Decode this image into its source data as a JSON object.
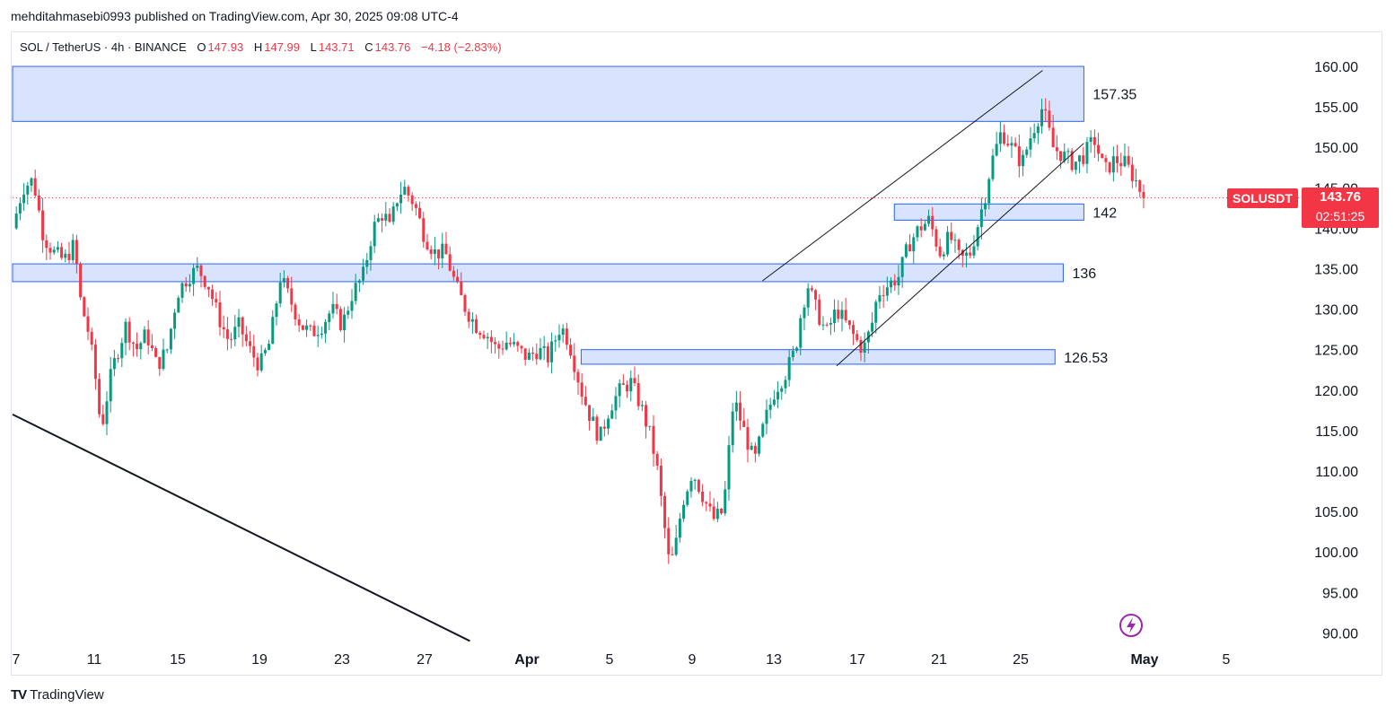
{
  "header": {
    "publisher": "mehditahmasebi0993 published on TradingView.com, Apr 30, 2025 09:08 UTC-4"
  },
  "legend": {
    "symbol": "SOL / TetherUS · 4h · BINANCE",
    "open_label": "O",
    "open": "147.93",
    "high_label": "H",
    "high": "147.99",
    "low_label": "L",
    "low": "143.71",
    "close_label": "C",
    "close": "143.76",
    "change": "−4.18 (−2.83%)"
  },
  "price_badge": {
    "ticker": "SOLUSDT",
    "price": "143.76",
    "countdown": "02:51:25"
  },
  "footer": {
    "brand": "TradingView",
    "logo": "TV"
  },
  "colors": {
    "up": "#089981",
    "down": "#f23645",
    "zone_fill": "#d1defd",
    "zone_border": "#2962ff",
    "last_price_line": "#f23645"
  },
  "icons": {
    "flash": "lightning-icon"
  },
  "chart_data": {
    "type": "candlestick",
    "interval": "4h",
    "y_axis": {
      "ticks": [
        "160.00",
        "155.00",
        "150.00",
        "145.00",
        "140.00",
        "135.00",
        "130.00",
        "125.00",
        "120.00",
        "115.00",
        "110.00",
        "105.00",
        "100.00",
        "95.00",
        "90.00"
      ],
      "range": [
        88,
        163
      ]
    },
    "x_axis": {
      "ticks": [
        "7",
        "11",
        "15",
        "19",
        "23",
        "27",
        "Apr",
        "5",
        "9",
        "13",
        "17",
        "21",
        "25",
        "May",
        "5"
      ]
    },
    "last_price": 143.76,
    "zones": [
      {
        "label": "157.35",
        "top": 160.0,
        "bottom": 153.2,
        "from_day": 7.0,
        "to_day": 59.0
      },
      {
        "label": "142",
        "top": 143.0,
        "bottom": 141.0,
        "from_day": 49.8,
        "to_day": 59.0
      },
      {
        "label": "136",
        "top": 135.6,
        "bottom": 133.4,
        "from_day": 7.0,
        "to_day": 58.0
      },
      {
        "label": "126.53",
        "top": 125.0,
        "bottom": 123.2,
        "from_day": 34.6,
        "to_day": 57.6
      }
    ],
    "trendlines": [
      {
        "name": "downtrend",
        "points": [
          [
            7.0,
            117.0
          ],
          [
            29.2,
            89.0
          ]
        ]
      },
      {
        "name": "channel-upper",
        "points": [
          [
            43.4,
            133.5
          ],
          [
            57.0,
            159.5
          ]
        ]
      },
      {
        "name": "channel-lower",
        "points": [
          [
            47.0,
            123.0
          ],
          [
            59.0,
            150.5
          ]
        ]
      }
    ],
    "series": [
      {
        "name": "SOL / TetherUS",
        "anchors": [
          [
            7.0,
            140.0
          ],
          [
            7.5,
            145.0
          ],
          [
            8.0,
            146.0
          ],
          [
            8.5,
            139.0
          ],
          [
            9.0,
            137.0
          ],
          [
            9.5,
            136.0
          ],
          [
            10.0,
            138.0
          ],
          [
            10.3,
            131.0
          ],
          [
            10.7,
            127.0
          ],
          [
            11.0,
            122.0
          ],
          [
            11.3,
            115.0
          ],
          [
            11.7,
            121.0
          ],
          [
            12.0,
            124.0
          ],
          [
            12.5,
            128.0
          ],
          [
            13.0,
            125.0
          ],
          [
            13.5,
            127.0
          ],
          [
            14.0,
            123.0
          ],
          [
            14.5,
            125.0
          ],
          [
            15.0,
            132.0
          ],
          [
            15.5,
            134.0
          ],
          [
            16.0,
            135.0
          ],
          [
            16.5,
            133.0
          ],
          [
            17.0,
            129.0
          ],
          [
            17.5,
            126.0
          ],
          [
            18.0,
            128.0
          ],
          [
            18.5,
            125.0
          ],
          [
            19.0,
            123.0
          ],
          [
            19.5,
            126.0
          ],
          [
            20.0,
            134.0
          ],
          [
            20.5,
            131.0
          ],
          [
            21.0,
            128.0
          ],
          [
            21.5,
            127.0
          ],
          [
            22.0,
            128.0
          ],
          [
            22.5,
            130.0
          ],
          [
            23.0,
            128.0
          ],
          [
            23.5,
            132.0
          ],
          [
            24.0,
            134.0
          ],
          [
            24.5,
            140.0
          ],
          [
            25.0,
            142.0
          ],
          [
            25.3,
            140.0
          ],
          [
            25.7,
            144.0
          ],
          [
            26.0,
            145.0
          ],
          [
            26.5,
            143.0
          ],
          [
            27.0,
            139.0
          ],
          [
            27.5,
            137.0
          ],
          [
            28.0,
            137.0
          ],
          [
            28.5,
            133.0
          ],
          [
            29.0,
            130.0
          ],
          [
            29.5,
            128.0
          ],
          [
            30.0,
            127.0
          ],
          [
            30.5,
            125.0
          ],
          [
            31.0,
            126.0
          ],
          [
            31.5,
            125.0
          ],
          [
            32.0,
            124.0
          ],
          [
            32.5,
            125.0
          ],
          [
            33.0,
            124.0
          ],
          [
            33.3,
            126.0
          ],
          [
            33.6,
            128.0
          ],
          [
            34.0,
            126.0
          ],
          [
            34.3,
            123.0
          ],
          [
            34.6,
            120.0
          ],
          [
            35.0,
            117.0
          ],
          [
            35.5,
            114.0
          ],
          [
            36.0,
            118.0
          ],
          [
            36.5,
            120.0
          ],
          [
            37.0,
            121.0
          ],
          [
            37.5,
            118.0
          ],
          [
            38.0,
            114.0
          ],
          [
            38.3,
            110.0
          ],
          [
            38.6,
            104.0
          ],
          [
            38.9,
            98.0
          ],
          [
            39.2,
            101.0
          ],
          [
            39.5,
            106.0
          ],
          [
            40.0,
            110.0
          ],
          [
            40.5,
            107.0
          ],
          [
            41.0,
            104.0
          ],
          [
            41.5,
            105.0
          ],
          [
            42.0,
            119.0
          ],
          [
            42.5,
            115.0
          ],
          [
            43.0,
            111.0
          ],
          [
            43.5,
            116.0
          ],
          [
            44.0,
            120.0
          ],
          [
            44.5,
            122.0
          ],
          [
            45.0,
            125.0
          ],
          [
            45.3,
            130.0
          ],
          [
            45.6,
            133.0
          ],
          [
            46.0,
            130.0
          ],
          [
            46.5,
            127.0
          ],
          [
            47.0,
            130.0
          ],
          [
            47.5,
            128.0
          ],
          [
            48.0,
            126.0
          ],
          [
            48.3,
            125.0
          ],
          [
            48.7,
            128.0
          ],
          [
            49.0,
            132.0
          ],
          [
            49.5,
            133.0
          ],
          [
            50.0,
            134.0
          ],
          [
            50.5,
            138.0
          ],
          [
            51.0,
            140.0
          ],
          [
            51.5,
            141.0
          ],
          [
            52.0,
            137.0
          ],
          [
            52.5,
            139.0
          ],
          [
            53.0,
            136.0
          ],
          [
            53.5,
            137.0
          ],
          [
            53.8,
            140.0
          ],
          [
            54.2,
            144.0
          ],
          [
            54.5,
            148.0
          ],
          [
            55.0,
            152.0
          ],
          [
            55.5,
            150.0
          ],
          [
            56.0,
            148.0
          ],
          [
            56.5,
            152.0
          ],
          [
            57.0,
            155.0
          ],
          [
            57.5,
            150.0
          ],
          [
            58.0,
            149.0
          ],
          [
            58.5,
            148.0
          ],
          [
            59.0,
            149.0
          ],
          [
            59.5,
            151.0
          ],
          [
            60.0,
            147.0
          ],
          [
            60.5,
            148.5
          ],
          [
            61.0,
            148.0
          ],
          [
            61.5,
            146.0
          ],
          [
            61.9,
            143.76
          ]
        ]
      }
    ]
  }
}
